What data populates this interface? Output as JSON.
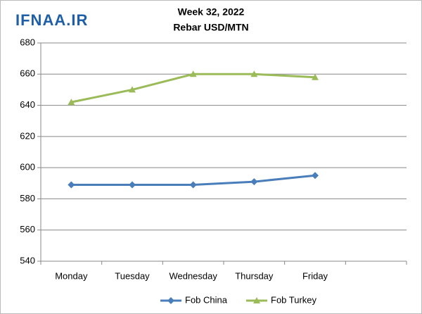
{
  "chart_data": {
    "type": "line",
    "watermark": "IFNAA.IR",
    "title": "Week 32, 2022",
    "subtitle": "Rebar USD/MTN",
    "categories": [
      "Monday",
      "Tuesday",
      "Wednesday",
      "Thursday",
      "Friday",
      null
    ],
    "series": [
      {
        "name": "Fob China",
        "color": "#4a7ebb",
        "marker": "diamond",
        "values": [
          589,
          589,
          589,
          591,
          595,
          null
        ]
      },
      {
        "name": "Fob Turkey",
        "color": "#9bbb59",
        "marker": "triangle",
        "values": [
          642,
          650,
          660,
          660,
          658,
          null
        ]
      }
    ],
    "ylim": [
      540,
      680
    ],
    "yticks": [
      540,
      560,
      580,
      600,
      620,
      640,
      660,
      680
    ],
    "grid": true,
    "legend": "bottom"
  }
}
